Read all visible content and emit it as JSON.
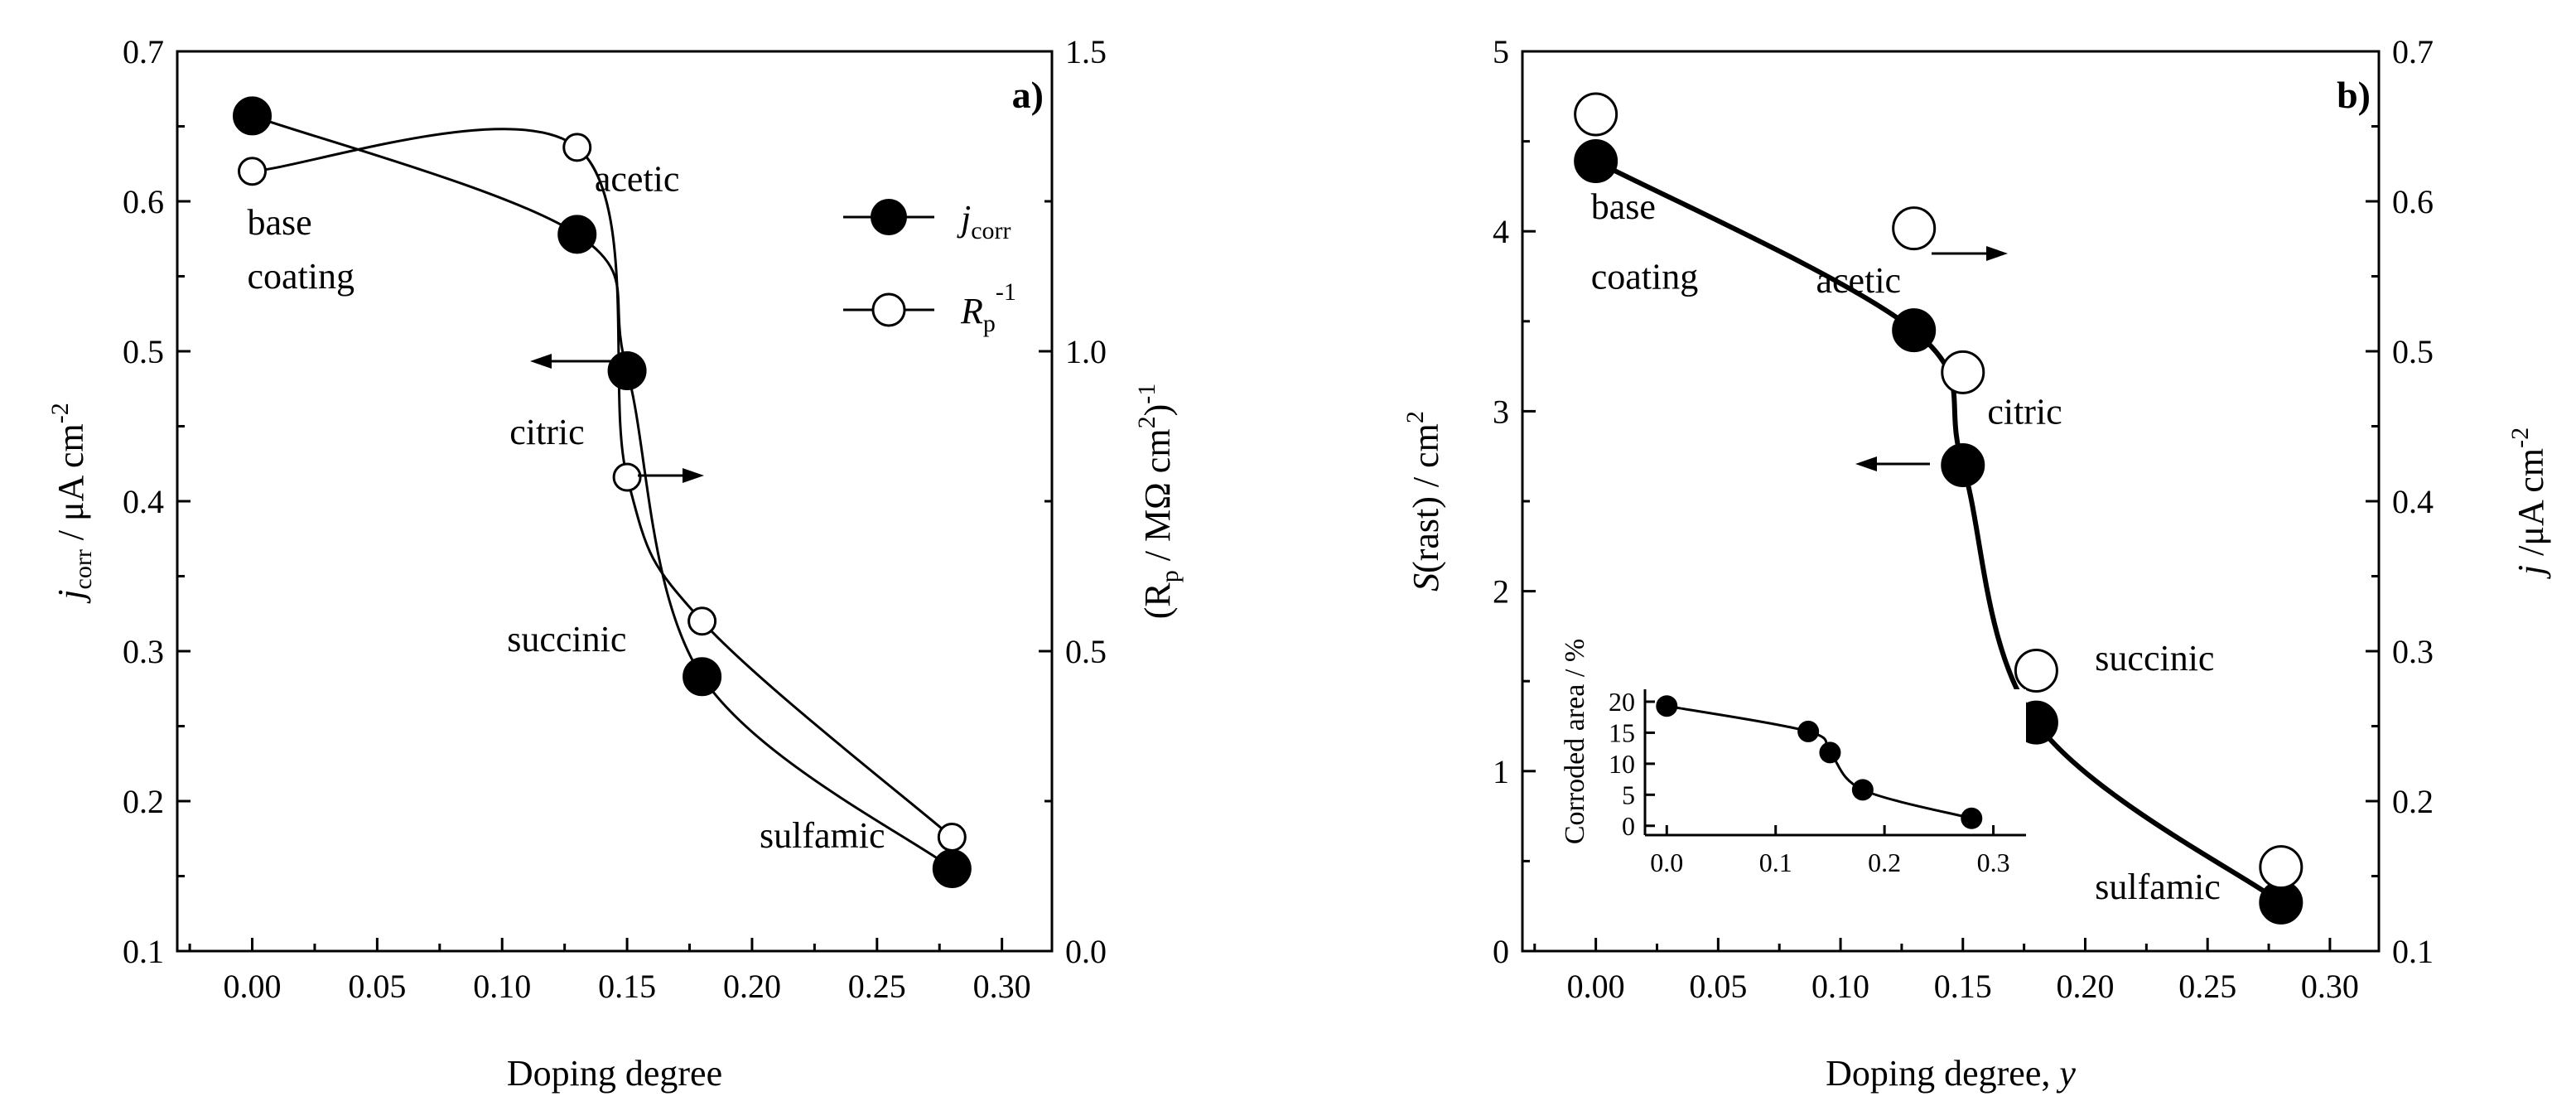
{
  "chart_data": [
    {
      "panel": "a",
      "panel_label": "a)",
      "type": "scatter",
      "xlabel": "Doping degree",
      "xlim": [
        -0.03,
        0.32
      ],
      "xticks": [
        "0.00",
        "0.05",
        "0.10",
        "0.15",
        "0.20",
        "0.25",
        "0.30"
      ],
      "ylim_left": [
        0.1,
        0.7
      ],
      "yticks_left": [
        "0.1",
        "0.2",
        "0.3",
        "0.4",
        "0.5",
        "0.6",
        "0.7"
      ],
      "ylabel_left": {
        "main": "j",
        "sub": "corr",
        "rest": " / μA cm",
        "sup": "-2"
      },
      "ylim_right": [
        0.0,
        1.5
      ],
      "yticks_right": [
        "0.0",
        "0.5",
        "1.0",
        "1.5"
      ],
      "ylabel_right": {
        "p1": "(R",
        "sub": "p",
        "p2": " / MΩ cm",
        "sup1": "2",
        "p3": ")",
        "sup2": "-1"
      },
      "series": [
        {
          "name": "j_corr",
          "axis": "left",
          "marker": "filled",
          "x": [
            0.0,
            0.13,
            0.15,
            0.18,
            0.28
          ],
          "y": [
            0.657,
            0.578,
            0.487,
            0.283,
            0.155
          ]
        },
        {
          "name": "Rp^-1",
          "axis": "right",
          "marker": "open",
          "x": [
            0.0,
            0.13,
            0.15,
            0.18,
            0.28
          ],
          "y": [
            1.3,
            1.34,
            0.79,
            0.55,
            0.19
          ]
        }
      ],
      "legend": [
        {
          "symbol": "filled",
          "main": "j",
          "sub": "corr"
        },
        {
          "symbol": "open",
          "main": "R",
          "sub": "p",
          "sup": "-1"
        }
      ],
      "annotations": [
        {
          "text": "base",
          "x": -0.002,
          "y": 0.578
        },
        {
          "text": "coating",
          "x": -0.002,
          "y": 0.542
        },
        {
          "text": "acetic",
          "x": 0.137,
          "y": 0.607
        },
        {
          "text": "citric",
          "x": 0.103,
          "y": 0.438
        },
        {
          "text": "succinic",
          "x": 0.102,
          "y": 0.3
        },
        {
          "text": "sulfamic",
          "x": 0.203,
          "y": 0.169
        }
      ]
    },
    {
      "panel": "b",
      "panel_label": "b)",
      "type": "scatter",
      "xlabel": {
        "main": "Doping degree, ",
        "italic": "y"
      },
      "xlim": [
        -0.03,
        0.32
      ],
      "xticks": [
        "0.00",
        "0.05",
        "0.10",
        "0.15",
        "0.20",
        "0.25",
        "0.30"
      ],
      "ylim_left": [
        0,
        5
      ],
      "yticks_left": [
        "0",
        "1",
        "2",
        "3",
        "4",
        "5"
      ],
      "ylabel_left": {
        "main": "S",
        "rest": "(rast) / cm",
        "sup": "2"
      },
      "ylim_right": [
        0.1,
        0.7
      ],
      "yticks_right": [
        "0.1",
        "0.2",
        "0.3",
        "0.4",
        "0.5",
        "0.6",
        "0.7"
      ],
      "ylabel_right": {
        "main": "j",
        "rest": " /μA cm",
        "sup": "-2"
      },
      "series": [
        {
          "name": "S(rast)",
          "axis": "left",
          "marker": "filled",
          "x": [
            0.0,
            0.13,
            0.15,
            0.18,
            0.28
          ],
          "y": [
            4.39,
            3.45,
            2.7,
            1.27,
            0.27
          ]
        },
        {
          "name": "j",
          "axis": "right",
          "marker": "open",
          "x": [
            0.0,
            0.13,
            0.15,
            0.18,
            0.28
          ],
          "y": [
            0.658,
            0.582,
            0.486,
            0.287,
            0.156
          ]
        }
      ],
      "annotations": [
        {
          "text": "base",
          "x": -0.002,
          "y": 4.07
        },
        {
          "text": "coating",
          "x": -0.002,
          "y": 3.68
        },
        {
          "text": "acetic",
          "x": 0.09,
          "y": 3.66
        },
        {
          "text": "citric",
          "x": 0.16,
          "y": 2.93
        },
        {
          "text": "succinic",
          "x": 0.204,
          "y": 1.56
        },
        {
          "text": "sulfamic",
          "x": 0.204,
          "y": 0.29
        }
      ],
      "inset": {
        "type": "scatter",
        "ylabel": "Corroded area / %",
        "xlim": [
          -0.02,
          0.33
        ],
        "ylim": [
          -1.5,
          22
        ],
        "xticks": [
          "0.0",
          "0.1",
          "0.2",
          "0.3"
        ],
        "yticks": [
          "0",
          "5",
          "10",
          "15",
          "20"
        ],
        "x": [
          0.0,
          0.13,
          0.15,
          0.18,
          0.28
        ],
        "y": [
          19.3,
          15.2,
          11.8,
          5.8,
          1.2
        ]
      }
    }
  ]
}
